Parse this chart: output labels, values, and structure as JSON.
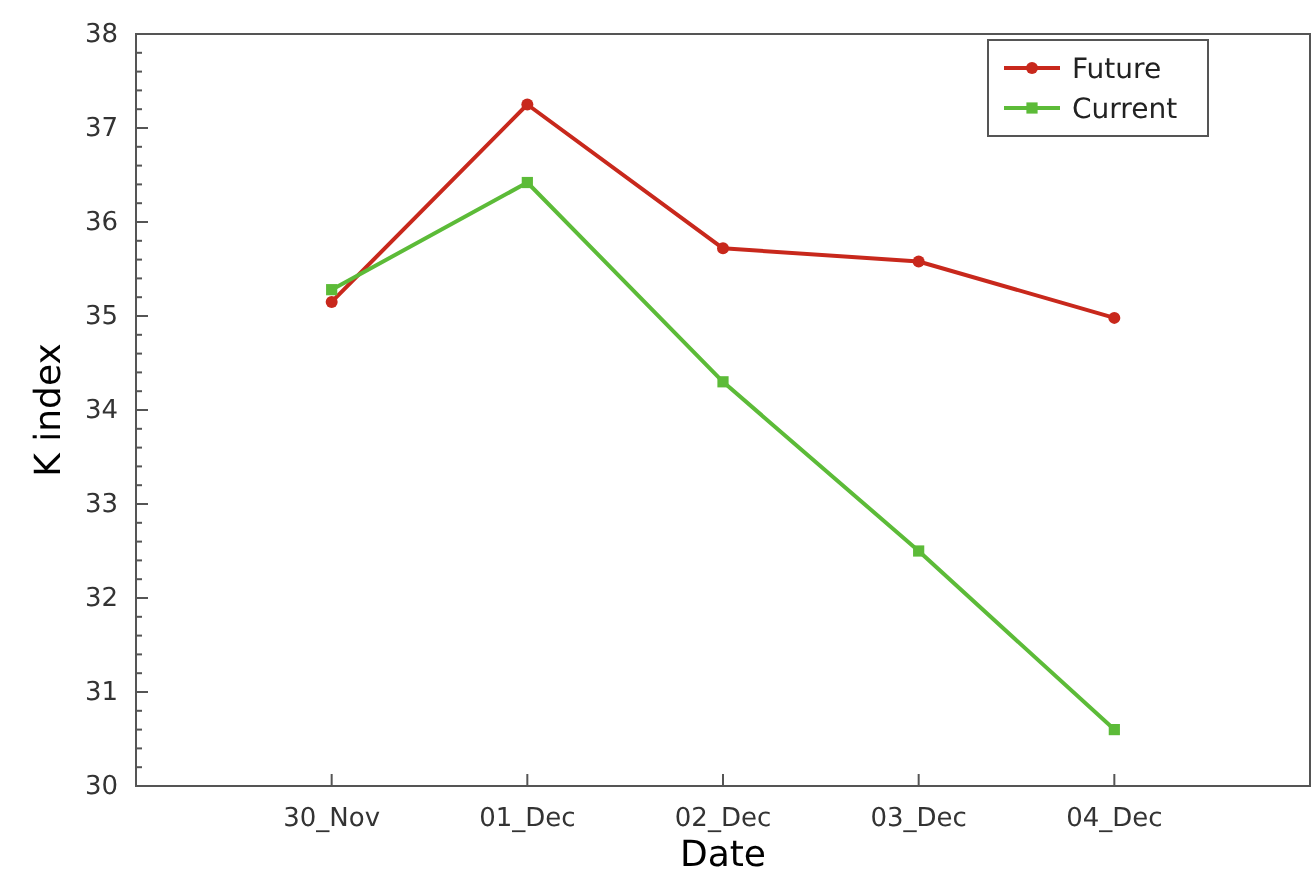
{
  "chart_data": {
    "type": "line",
    "xlabel": "Date",
    "ylabel": "K index",
    "categories": [
      "30_Nov",
      "01_Dec",
      "02_Dec",
      "03_Dec",
      "04_Dec"
    ],
    "series": [
      {
        "name": "Future",
        "color": "#c8281c",
        "marker": "circle",
        "values": [
          35.15,
          37.25,
          35.72,
          35.58,
          34.98
        ]
      },
      {
        "name": "Current",
        "color": "#5cbb38",
        "marker": "square",
        "values": [
          35.28,
          36.42,
          34.3,
          32.5,
          30.6
        ]
      }
    ],
    "ylim": [
      30,
      38
    ],
    "yticks": [
      30,
      {
        "value": 30.2,
        "label": null
      },
      {
        "value": 30.4,
        "label": null
      },
      {
        "value": 30.6,
        "label": null
      },
      {
        "value": 30.8,
        "label": null
      },
      31,
      {
        "value": 31.2,
        "label": null
      },
      {
        "value": 31.4,
        "label": null
      },
      {
        "value": 31.6,
        "label": null
      },
      {
        "value": 31.8,
        "label": null
      },
      32,
      {
        "value": 32.2,
        "label": null
      },
      {
        "value": 32.4,
        "label": null
      },
      {
        "value": 32.6,
        "label": null
      },
      {
        "value": 32.8,
        "label": null
      },
      33,
      {
        "value": 33.2,
        "label": null
      },
      {
        "value": 33.4,
        "label": null
      },
      {
        "value": 33.6,
        "label": null
      },
      {
        "value": 33.8,
        "label": null
      },
      34,
      {
        "value": 34.2,
        "label": null
      },
      {
        "value": 34.4,
        "label": null
      },
      {
        "value": 34.6,
        "label": null
      },
      {
        "value": 34.8,
        "label": null
      },
      35,
      {
        "value": 35.2,
        "label": null
      },
      {
        "value": 35.4,
        "label": null
      },
      {
        "value": 35.6,
        "label": null
      },
      {
        "value": 35.8,
        "label": null
      },
      36,
      {
        "value": 36.2,
        "label": null
      },
      {
        "value": 36.4,
        "label": null
      },
      {
        "value": 36.6,
        "label": null
      },
      {
        "value": 36.8,
        "label": null
      },
      37,
      {
        "value": 37.2,
        "label": null
      },
      {
        "value": 37.4,
        "label": null
      },
      {
        "value": 37.6,
        "label": null
      },
      {
        "value": 37.8,
        "label": null
      },
      38
    ],
    "grid": false,
    "legend": "top right",
    "line_style": "solid"
  }
}
